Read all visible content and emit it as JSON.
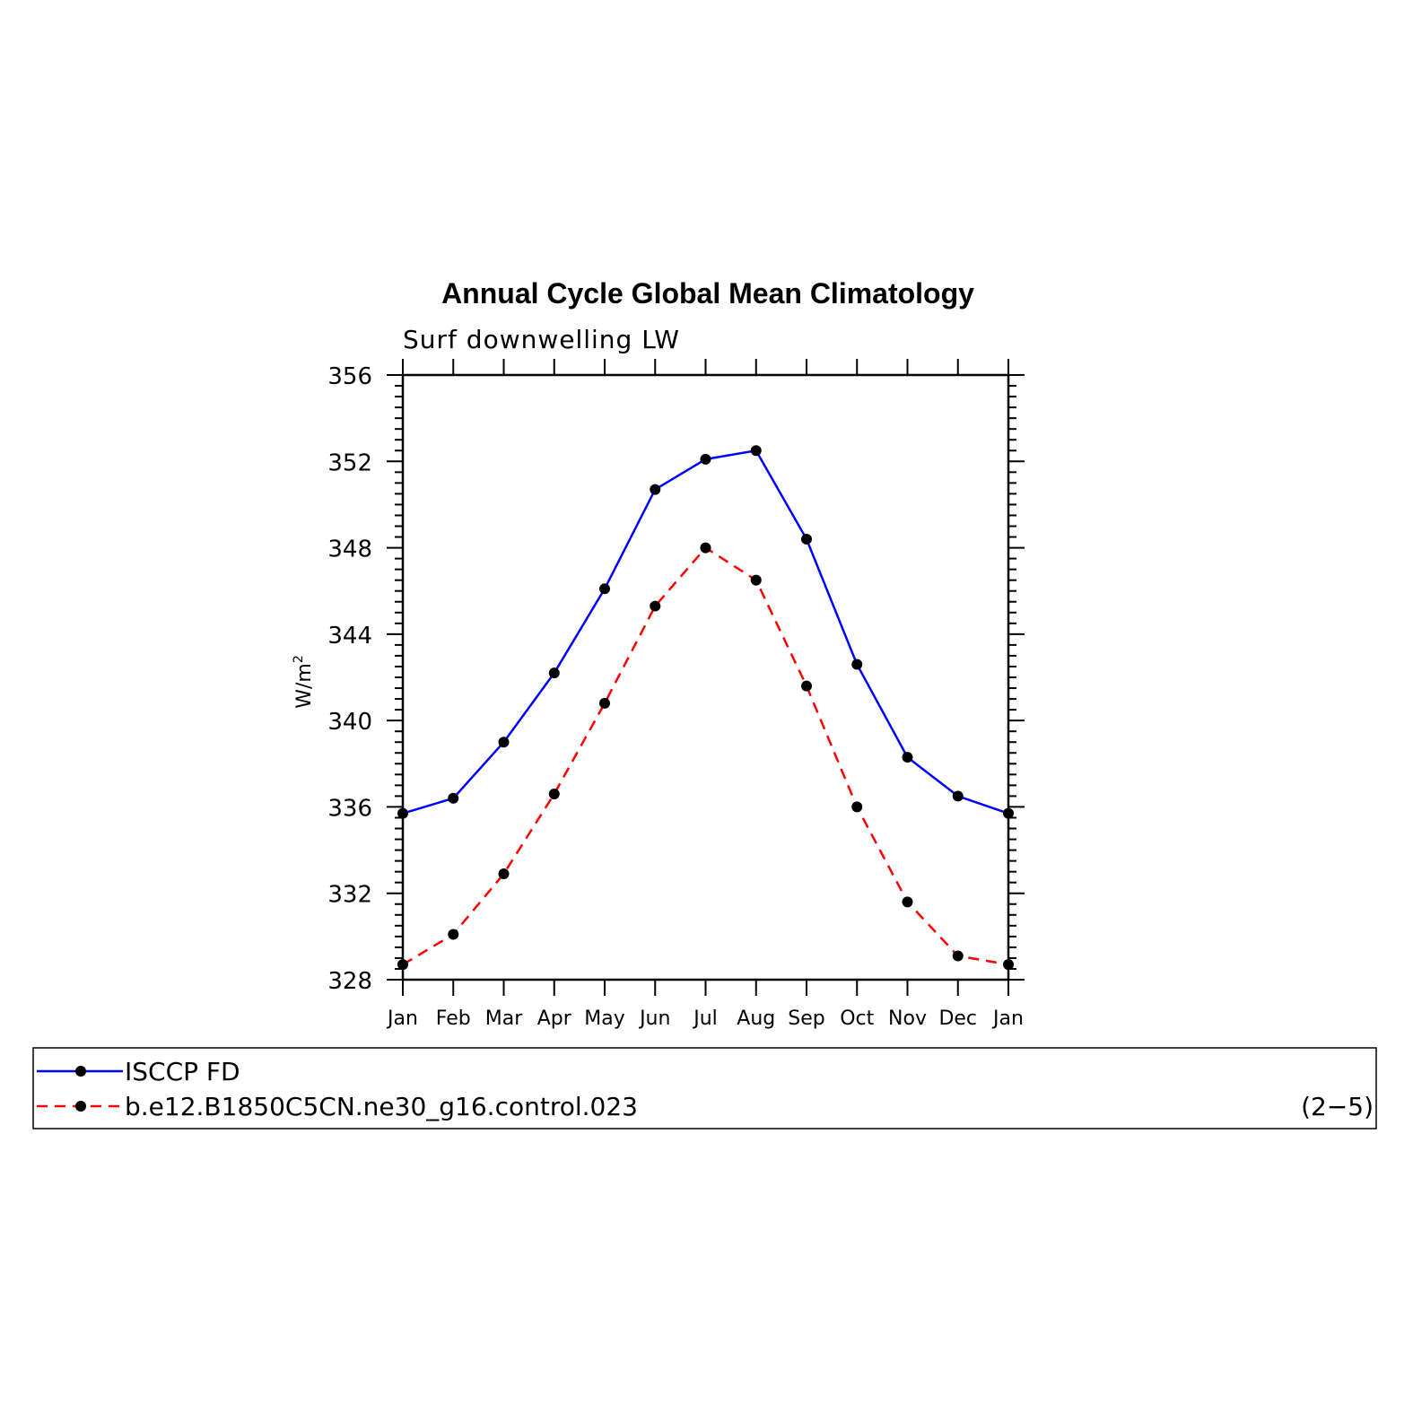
{
  "chart_data": {
    "type": "line",
    "title": "Annual Cycle Global Mean Climatology",
    "subtitle": "Surf downwelling LW",
    "xlabel": "",
    "ylabel": "W/m",
    "ylabel_sup": "2",
    "categories": [
      "Jan",
      "Feb",
      "Mar",
      "Apr",
      "May",
      "Jun",
      "Jul",
      "Aug",
      "Sep",
      "Oct",
      "Nov",
      "Dec",
      "Jan"
    ],
    "ylim": [
      328,
      356
    ],
    "yticks": [
      328,
      332,
      336,
      340,
      344,
      348,
      352,
      356
    ],
    "grid": false,
    "legend_position": "bottom",
    "series": [
      {
        "name": "ISCCP FD",
        "color": "#0000ff",
        "dash": "solid",
        "marker": "circle",
        "values": [
          335.7,
          336.4,
          339.0,
          342.2,
          346.1,
          350.7,
          352.1,
          352.5,
          348.4,
          342.6,
          338.3,
          336.5,
          335.7
        ]
      },
      {
        "name": "b.e12.B1850C5CN.ne30_g16.control.023",
        "color": "#ff0000",
        "dash": "dashed",
        "marker": "circle",
        "values": [
          328.7,
          330.1,
          332.9,
          336.6,
          340.8,
          345.3,
          348.0,
          346.5,
          341.6,
          336.0,
          331.6,
          329.1,
          328.7
        ]
      }
    ]
  },
  "panel_id": "(2−5)"
}
